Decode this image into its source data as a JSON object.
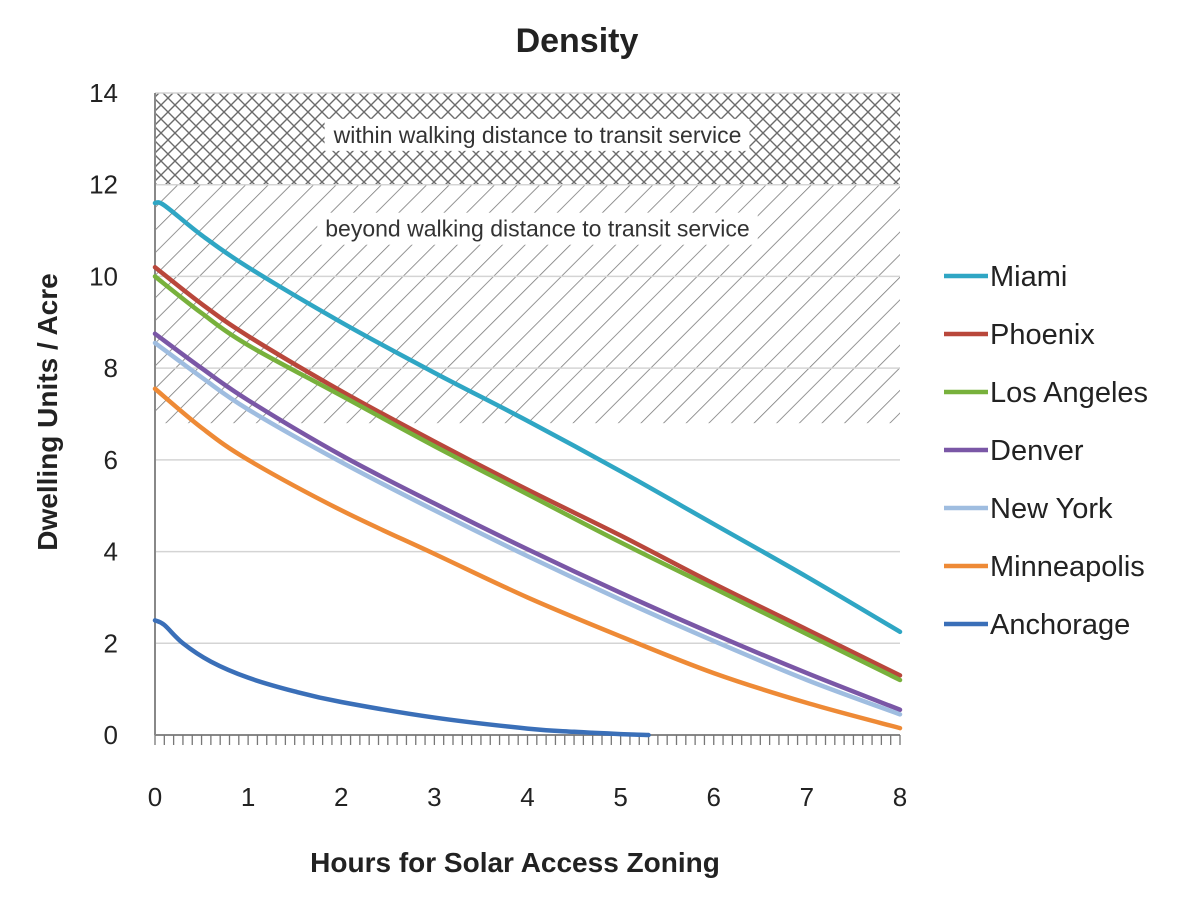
{
  "chart_data": {
    "type": "line",
    "title": "Density",
    "xlabel": "Hours for Solar Access Zoning",
    "ylabel": "Dwelling Units / Acre",
    "xlim": [
      0,
      8
    ],
    "ylim": [
      0,
      14
    ],
    "x_ticks": [
      "0",
      "1",
      "2",
      "3",
      "4",
      "5",
      "6",
      "7",
      "8"
    ],
    "y_ticks": [
      "0",
      "2",
      "4",
      "6",
      "8",
      "10",
      "12",
      "14"
    ],
    "grid": "horizontal",
    "legend_position": "right",
    "bands": [
      {
        "label": "within walking distance to transit service",
        "y_range": [
          12,
          14
        ],
        "pattern": "crosshatch"
      },
      {
        "label": "beyond walking distance to transit service",
        "y_range": [
          6.8,
          12
        ],
        "pattern": "diagonal"
      }
    ],
    "series": [
      {
        "name": "Miami",
        "color": "#2fa6c4",
        "x": [
          0,
          0.1,
          0.5,
          1,
          2,
          3,
          4,
          5,
          6,
          7,
          8
        ],
        "values": [
          11.6,
          11.55,
          10.9,
          10.2,
          9.0,
          7.9,
          6.85,
          5.75,
          4.6,
          3.45,
          2.25
        ]
      },
      {
        "name": "Phoenix",
        "color": "#b9473b",
        "x": [
          0,
          0.5,
          1,
          2,
          3,
          4,
          5,
          6,
          7,
          8
        ],
        "values": [
          10.2,
          9.4,
          8.7,
          7.5,
          6.4,
          5.35,
          4.35,
          3.3,
          2.3,
          1.3
        ]
      },
      {
        "name": "Los Angeles",
        "color": "#78b13c",
        "x": [
          0,
          0.5,
          1,
          2,
          3,
          4,
          5,
          6,
          7,
          8
        ],
        "values": [
          10.0,
          9.2,
          8.5,
          7.4,
          6.3,
          5.25,
          4.2,
          3.2,
          2.2,
          1.2
        ]
      },
      {
        "name": "Denver",
        "color": "#7a57a6",
        "x": [
          0,
          0.5,
          1,
          2,
          3,
          4,
          5,
          6,
          7,
          8
        ],
        "values": [
          8.75,
          8.0,
          7.3,
          6.1,
          5.05,
          4.05,
          3.1,
          2.2,
          1.35,
          0.55
        ]
      },
      {
        "name": "New York",
        "color": "#9fbde0",
        "x": [
          0,
          0.5,
          1,
          2,
          3,
          4,
          5,
          6,
          7,
          8
        ],
        "values": [
          8.55,
          7.8,
          7.1,
          5.95,
          4.9,
          3.9,
          2.95,
          2.05,
          1.2,
          0.45
        ]
      },
      {
        "name": "Minneapolis",
        "color": "#ee8a36",
        "x": [
          0,
          0.5,
          1,
          2,
          3,
          4,
          5,
          6,
          7,
          8
        ],
        "values": [
          7.55,
          6.7,
          6.0,
          4.9,
          3.95,
          3.0,
          2.15,
          1.35,
          0.7,
          0.15
        ]
      },
      {
        "name": "Anchorage",
        "color": "#3a6fb8",
        "x": [
          0,
          0.1,
          0.3,
          0.6,
          1,
          1.5,
          2,
          3,
          4,
          4.5,
          5,
          5.3
        ],
        "values": [
          2.5,
          2.4,
          2.0,
          1.6,
          1.25,
          0.95,
          0.72,
          0.38,
          0.14,
          0.07,
          0.02,
          0.0
        ]
      }
    ]
  }
}
